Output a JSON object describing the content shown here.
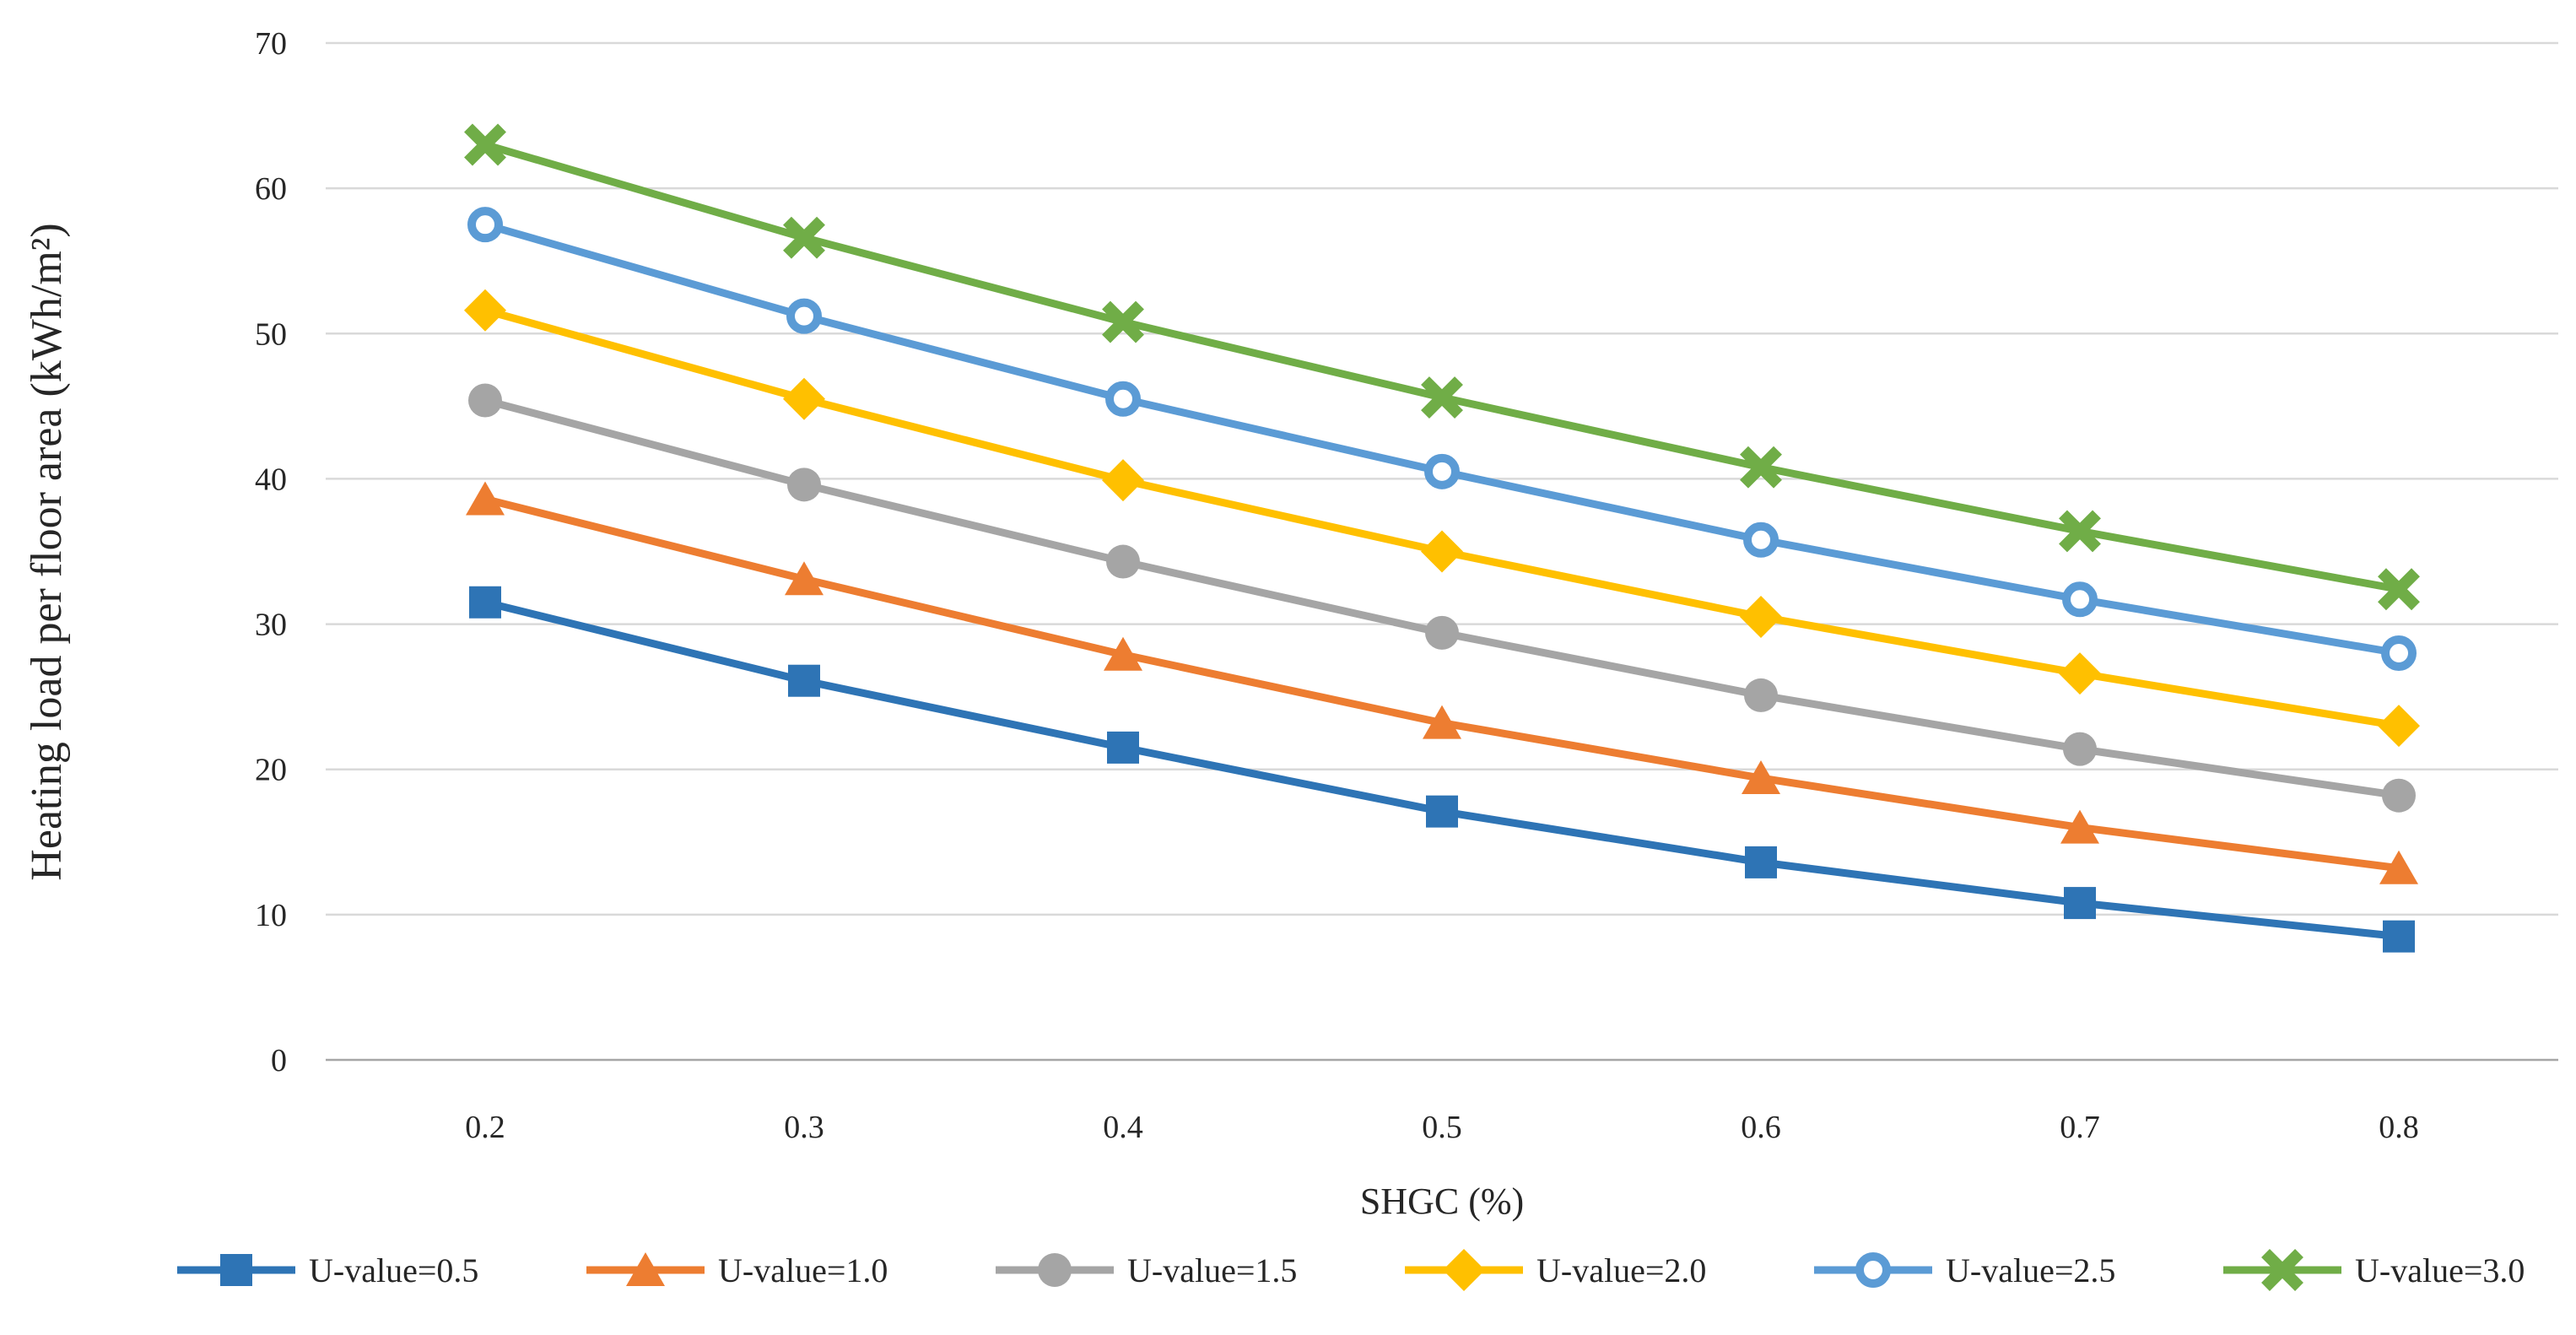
{
  "chart_data": {
    "type": "line",
    "title": "",
    "xlabel": "SHGC (%)",
    "ylabel": "Heating load per floor area (kWh/m²)",
    "x": [
      0.2,
      0.3,
      0.4,
      0.5,
      0.6,
      0.7,
      0.8
    ],
    "x_tick_labels": [
      "0.2",
      "0.3",
      "0.4",
      "0.5",
      "0.6",
      "0.7",
      "0.8"
    ],
    "y_ticks": [
      0,
      10,
      20,
      30,
      40,
      50,
      60,
      70
    ],
    "ylim": [
      0,
      70
    ],
    "grid": "horizontal",
    "legend_position": "bottom",
    "series": [
      {
        "name": "U-value=0.5",
        "marker": "square",
        "color": "#2E74B5",
        "values": [
          31.5,
          26.1,
          21.5,
          17.1,
          13.6,
          10.8,
          8.5
        ]
      },
      {
        "name": "U-value=1.0",
        "marker": "triangle",
        "color": "#ED7D31",
        "values": [
          38.6,
          33.1,
          27.9,
          23.2,
          19.4,
          16.0,
          13.2
        ]
      },
      {
        "name": "U-value=1.5",
        "marker": "circle",
        "color": "#A5A5A5",
        "values": [
          45.4,
          39.6,
          34.3,
          29.4,
          25.1,
          21.4,
          18.2
        ]
      },
      {
        "name": "U-value=2.0",
        "marker": "diamond",
        "color": "#FFC000",
        "values": [
          51.6,
          45.5,
          39.9,
          35.0,
          30.5,
          26.6,
          23.0
        ]
      },
      {
        "name": "U-value=2.5",
        "marker": "open-circle",
        "color": "#5B9BD5",
        "values": [
          57.5,
          51.2,
          45.5,
          40.5,
          35.8,
          31.7,
          28.0
        ]
      },
      {
        "name": "U-value=3.0",
        "marker": "x",
        "color": "#70AD47",
        "values": [
          63.0,
          56.6,
          50.8,
          45.6,
          40.8,
          36.4,
          32.4
        ]
      }
    ]
  },
  "colors": {
    "gridline": "#D9D9D9",
    "axis_line": "#A6A6A6",
    "text": "#262626",
    "background": "#FFFFFF"
  }
}
